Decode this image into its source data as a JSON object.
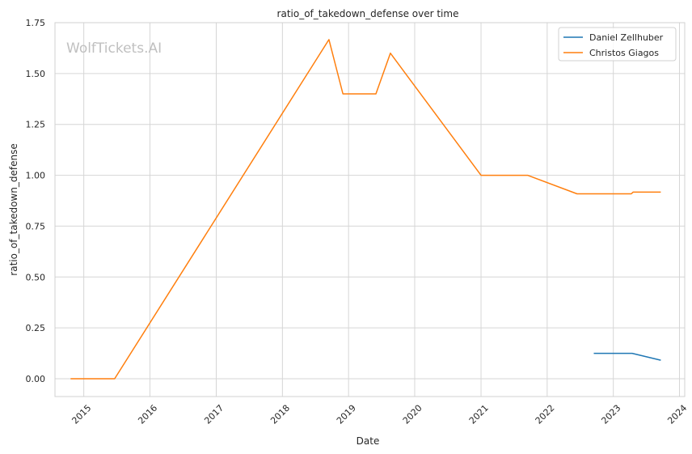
{
  "chart_data": {
    "type": "line",
    "title": "ratio_of_takedown_defense over time",
    "xlabel": "Date",
    "ylabel": "ratio_of_takedown_defense",
    "watermark": "WolfTickets.AI",
    "x_ticks": [
      "2015",
      "2016",
      "2017",
      "2018",
      "2019",
      "2020",
      "2021",
      "2022",
      "2023",
      "2024"
    ],
    "y_ticks": [
      "0.00",
      "0.25",
      "0.50",
      "0.75",
      "1.00",
      "1.25",
      "1.50",
      "1.75"
    ],
    "xlim": [
      "2014-07-26",
      "2024-01-30"
    ],
    "ylim": [
      -0.0875,
      1.75
    ],
    "grid": true,
    "legend_position": "top-right",
    "series": [
      {
        "name": "Daniel Zellhuber",
        "color": "#1f77b4",
        "points": [
          [
            "2022-09-15",
            0.125
          ],
          [
            "2023-02-01",
            0.125
          ],
          [
            "2023-04-15",
            0.125
          ],
          [
            "2023-09-20",
            0.091
          ]
        ]
      },
      {
        "name": "Christos Giagos",
        "color": "#ff7f0e",
        "points": [
          [
            "2014-10-20",
            0.0
          ],
          [
            "2015-06-20",
            0.0
          ],
          [
            "2018-09-15",
            1.667
          ],
          [
            "2018-12-01",
            1.4
          ],
          [
            "2019-06-01",
            1.4
          ],
          [
            "2019-08-20",
            1.6
          ],
          [
            "2021-01-01",
            1.0
          ],
          [
            "2021-09-15",
            1.0
          ],
          [
            "2022-06-15",
            0.909
          ],
          [
            "2023-04-10",
            0.909
          ],
          [
            "2023-04-20",
            0.917
          ],
          [
            "2023-09-20",
            0.917
          ]
        ]
      }
    ]
  }
}
